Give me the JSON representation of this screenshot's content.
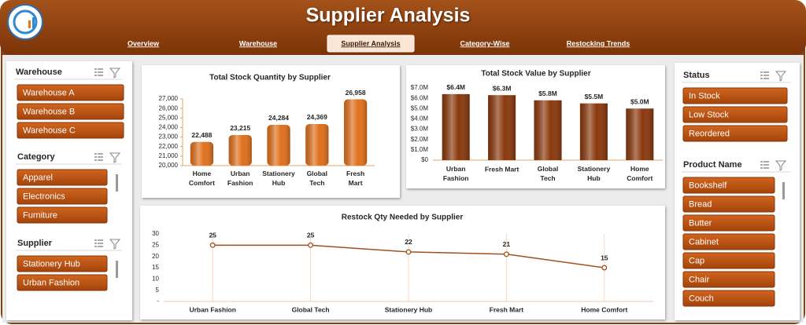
{
  "header": {
    "title": "Supplier Analysis"
  },
  "nav": {
    "tabs": [
      "Overview",
      "Warehouse",
      "Supplier Analysis",
      "Category-Wise",
      "Restocking Trends"
    ],
    "active": "Supplier Analysis"
  },
  "slicers": [
    {
      "title": "Warehouse",
      "items": [
        "Warehouse A",
        "Warehouse B",
        "Warehouse C"
      ]
    },
    {
      "title": "Category",
      "items": [
        "Apparel",
        "Electronics",
        "Furniture"
      ]
    },
    {
      "title": "Supplier",
      "items": [
        "Stationery Hub",
        "Urban Fashion"
      ]
    },
    {
      "title": "Status",
      "items": [
        "In Stock",
        "Low Stock",
        "Reordered"
      ]
    },
    {
      "title": "Product Name",
      "items": [
        "Bookshelf",
        "Bread",
        "Butter",
        "Cabinet",
        "Cap",
        "Chair",
        "Couch"
      ]
    }
  ],
  "chart_data": [
    {
      "type": "bar",
      "title": "Total Stock Quantity by Supplier",
      "color": "#e0701c",
      "categories": [
        "Home Comfort",
        "Urban Fashion",
        "Stationery Hub",
        "Global Tech",
        "Fresh Mart"
      ],
      "values": [
        22488,
        23215,
        24284,
        24369,
        26958
      ],
      "value_labels": [
        "22,488",
        "23,215",
        "24,284",
        "24,369",
        "26,958"
      ],
      "ylim": [
        20000,
        27000
      ],
      "yticks": [
        {
          "value": 20000,
          "label": "20,000"
        },
        {
          "value": 21000,
          "label": "21,000"
        },
        {
          "value": 22000,
          "label": "22,000"
        },
        {
          "value": 23000,
          "label": "23,000"
        },
        {
          "value": 24000,
          "label": "24,000"
        },
        {
          "value": 25000,
          "label": "25,000"
        },
        {
          "value": 26000,
          "label": "26,000"
        },
        {
          "value": 27000,
          "label": "27,000"
        }
      ],
      "grid": false
    },
    {
      "type": "bar",
      "title": "Total Stock Value by Supplier",
      "color": "#8a380c",
      "categories": [
        "Urban Fashion",
        "Fresh Mart",
        "Global Tech",
        "Stationery Hub",
        "Home Comfort"
      ],
      "values": [
        6400000,
        6300000,
        5800000,
        5500000,
        5000000
      ],
      "value_labels": [
        "$6.4M",
        "$6.3M",
        "$5.8M",
        "$5.5M",
        "$5.0M"
      ],
      "ylim": [
        0,
        7000000
      ],
      "yticks": [
        {
          "value": 0,
          "label": "$0"
        },
        {
          "value": 1000000,
          "label": "$1.0M"
        },
        {
          "value": 2000000,
          "label": "$2.0M"
        },
        {
          "value": 3000000,
          "label": "$3.0M"
        },
        {
          "value": 4000000,
          "label": "$4.0M"
        },
        {
          "value": 5000000,
          "label": "$5.0M"
        },
        {
          "value": 6000000,
          "label": "$6.0M"
        },
        {
          "value": 7000000,
          "label": "$7.0M"
        }
      ],
      "grid": false
    },
    {
      "type": "line",
      "title": "Restock Qty Needed by Supplier",
      "color": "#a0501e",
      "categories": [
        "Urban Fashion",
        "Global Tech",
        "Stationery Hub",
        "Fresh Mart",
        "Home Comfort"
      ],
      "values": [
        25,
        25,
        22,
        21,
        15
      ],
      "ylim": [
        0,
        30
      ],
      "yticks": [
        {
          "value": 0,
          "label": "-"
        },
        5,
        10,
        15,
        20,
        25,
        30
      ],
      "grid": false
    }
  ]
}
